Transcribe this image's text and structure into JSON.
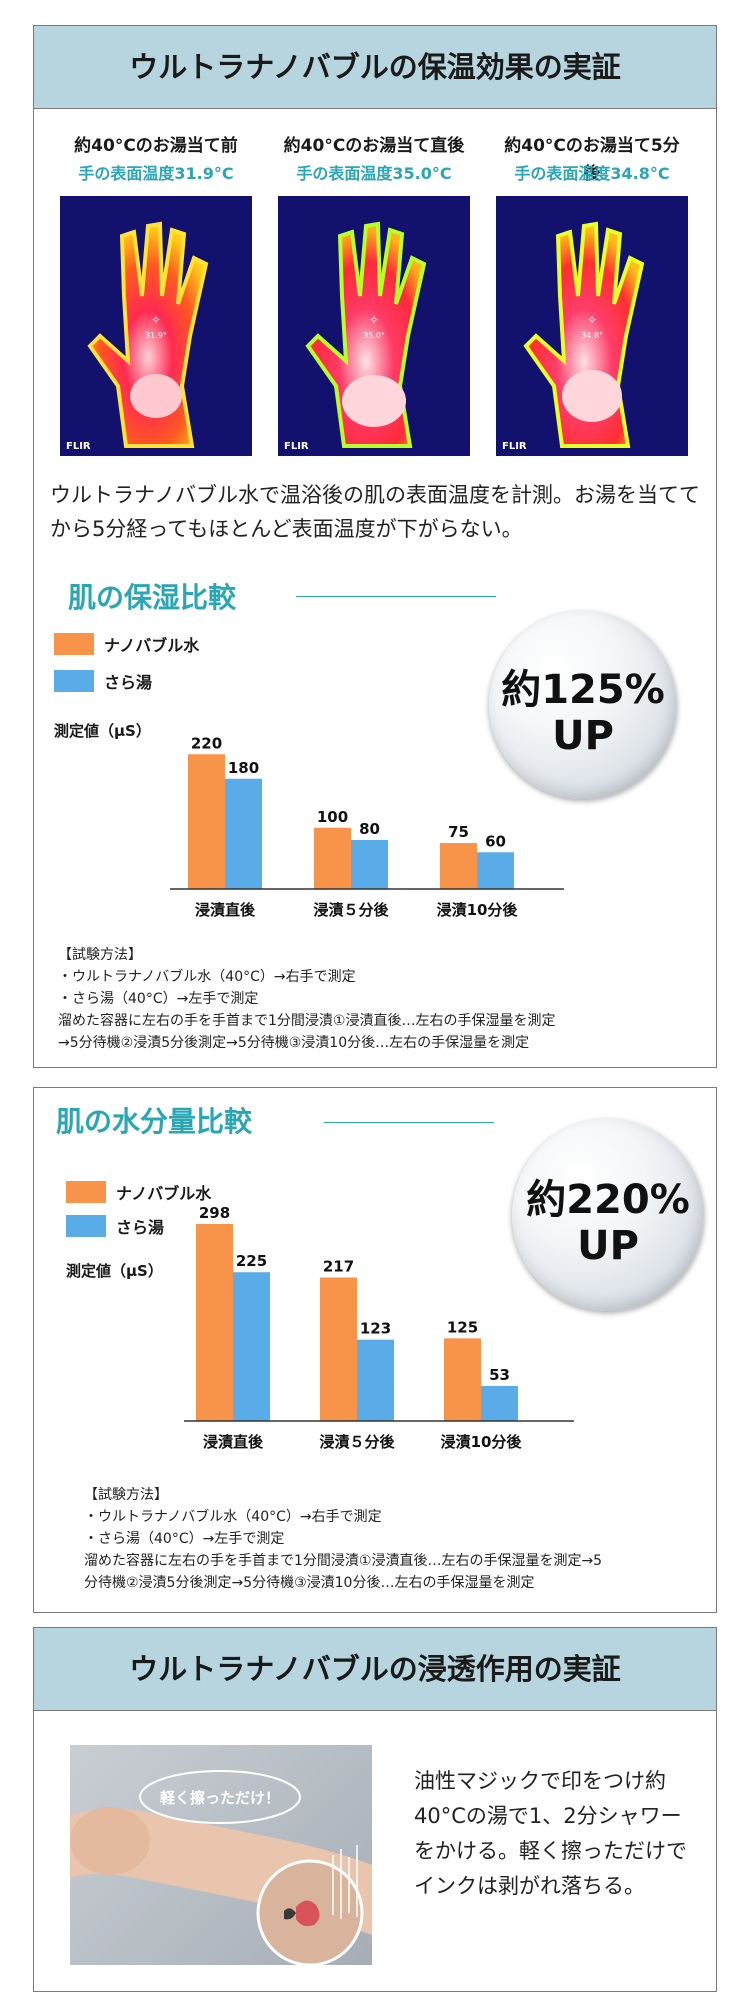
{
  "section1": {
    "heading": "ウルトラナノバブルの保温効果の実証",
    "thermo": [
      {
        "caption": "約40°Cのお湯当て前",
        "temp": "手の表面温度31.9°C",
        "reading": "31.9°",
        "brand": "FLIR"
      },
      {
        "caption": "約40°Cのお湯当て直後",
        "temp": "手の表面温度35.0°C",
        "reading": "35.0°",
        "brand": "FLIR"
      },
      {
        "caption": "約40°Cのお湯当て5分後",
        "temp": "手の表面温度34.8°C",
        "reading": "34.8°",
        "brand": "FLIR"
      }
    ],
    "description": "ウルトラナノバブル水で温浴後の肌の表面温度を計測。お湯を当ててから5分経ってもほとんど表面温度が下がらない。"
  },
  "moisture": {
    "title": "肌の保湿比較",
    "legend": {
      "series1": "ナノバブル水",
      "series2": "さら湯"
    },
    "unit": "測定値（μS）",
    "bubble": {
      "line1": "約125%",
      "line2": "UP"
    },
    "method": [
      "【試験方法】",
      "・ウルトラナノバブル水（40°C）→右手で測定",
      "・さら湯（40°C）→左手で測定",
      "溜めた容器に左右の手を手首まで1分間浸漬①浸漬直後…左右の手保湿量を測定",
      "→5分待機②浸漬5分後測定→5分待機③浸漬10分後…左右の手保湿量を測定"
    ]
  },
  "water": {
    "title": "肌の水分量比較",
    "legend": {
      "series1": "ナノバブル水",
      "series2": "さら湯"
    },
    "unit": "測定値（μS）",
    "bubble": {
      "line1": "約220%",
      "line2": "UP"
    },
    "method": [
      "【試験方法】",
      "・ウルトラナノバブル水（40°C）→右手で測定",
      "・さら湯（40°C）→左手で測定",
      "溜めた容器に左右の手を手首まで1分間浸漬①浸漬直後…左右の手保湿量を測定→5",
      "分待機②浸漬5分後測定→5分待機③浸漬10分後…左右の手保湿量を測定"
    ]
  },
  "section3": {
    "heading": "ウルトラナノバブルの浸透作用の実証",
    "photo_label": "軽く擦っただけ！",
    "description": "油性マジックで印をつけ約40°Cの湯で1、2分シャワーをかける。軽く擦っただけでインクは剥がれ落ちる。"
  },
  "colors": {
    "nano": "#f7944a",
    "plain": "#5aace8",
    "accent": "#2aa6b4",
    "header": "#b7d5df"
  },
  "chart_data": [
    {
      "type": "bar",
      "title": "肌の保湿比較",
      "ylabel": "測定値（μS）",
      "categories": [
        "浸漬直後",
        "浸漬５分後",
        "浸漬10分後"
      ],
      "series": [
        {
          "name": "ナノバブル水",
          "values": [
            220,
            100,
            75
          ]
        },
        {
          "name": "さら湯",
          "values": [
            180,
            80,
            60
          ]
        }
      ],
      "ylim": [
        0,
        240
      ],
      "grid": false,
      "legend": "top-left"
    },
    {
      "type": "bar",
      "title": "肌の水分量比較",
      "ylabel": "測定値（μS）",
      "categories": [
        "浸漬直後",
        "浸漬５分後",
        "浸漬10分後"
      ],
      "series": [
        {
          "name": "ナノバブル水",
          "values": [
            298,
            217,
            125
          ]
        },
        {
          "name": "さら湯",
          "values": [
            225,
            123,
            53
          ]
        }
      ],
      "ylim": [
        0,
        310
      ],
      "grid": false,
      "legend": "top-left"
    }
  ]
}
